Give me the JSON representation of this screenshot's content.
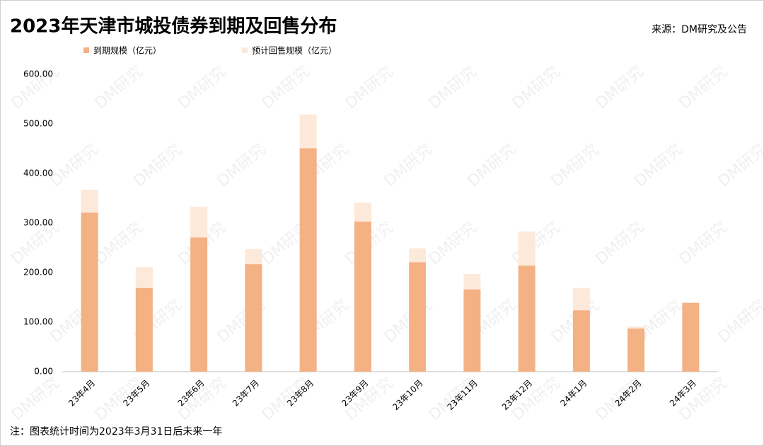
{
  "chart_data": {
    "type": "stacked_bar",
    "title": "2023年天津市城投债券到期及回售分布",
    "source": "来源：DM研究及公告",
    "note": "注：图表统计时间为2023年3月31日后未来一年",
    "watermark": "DM研究",
    "categories": [
      "23年4月",
      "23年5月",
      "23年6月",
      "23年7月",
      "23年8月",
      "23年9月",
      "23年10月",
      "23年11月",
      "23年12月",
      "24年1月",
      "24年2月",
      "24年3月"
    ],
    "series": [
      {
        "name": "到期规模（亿元）",
        "color": "#f4b183",
        "values": [
          321,
          169,
          271,
          217,
          451,
          303,
          221,
          166,
          214,
          124,
          87,
          139
        ]
      },
      {
        "name": "预计回售规模（亿元）",
        "color": "#fde9d9",
        "values": [
          46,
          42,
          62,
          30,
          68,
          38,
          28,
          31,
          69,
          45,
          4,
          0
        ]
      }
    ],
    "ylim": [
      0,
      600
    ],
    "yticks": [
      {
        "value": 0,
        "label": "0.00"
      },
      {
        "value": 100,
        "label": "100.00"
      },
      {
        "value": 200,
        "label": "200.00"
      },
      {
        "value": 300,
        "label": "300.00"
      },
      {
        "value": 400,
        "label": "400.00"
      },
      {
        "value": 500,
        "label": "500.00"
      },
      {
        "value": 600,
        "label": "600.00"
      }
    ]
  }
}
